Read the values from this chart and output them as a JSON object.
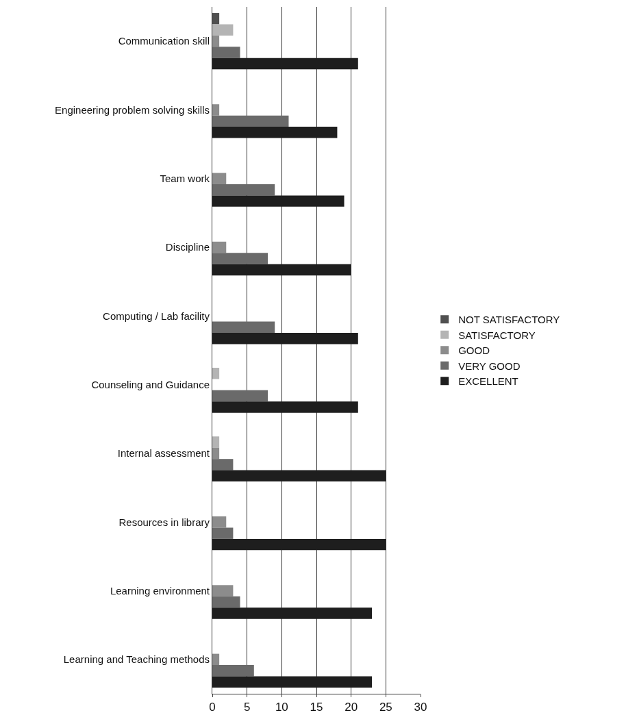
{
  "chart_data": {
    "type": "bar",
    "orientation": "horizontal",
    "categories": [
      "Communication skill",
      "Engineering problem solving skills",
      "Team work",
      "Discipline",
      "Computing / Lab facility",
      "Counseling and Guidance",
      "Internal assessment",
      "Resources in library",
      "Learning environment",
      "Learning and Teaching methods"
    ],
    "series": [
      {
        "name": "NOT SATISFACTORY",
        "color": "#505050",
        "values": [
          1,
          0,
          0,
          0,
          0,
          0,
          0,
          0,
          0,
          0
        ]
      },
      {
        "name": "SATISFACTORY",
        "color": "#b4b4b4",
        "values": [
          3,
          0,
          0,
          0,
          0,
          1,
          1,
          0,
          0,
          0
        ]
      },
      {
        "name": "GOOD",
        "color": "#8c8c8c",
        "values": [
          1,
          1,
          2,
          2,
          0,
          0,
          1,
          2,
          3,
          1
        ]
      },
      {
        "name": "VERY GOOD",
        "color": "#6a6a6a",
        "values": [
          4,
          11,
          9,
          8,
          9,
          8,
          3,
          3,
          4,
          6
        ]
      },
      {
        "name": "EXCELLENT",
        "color": "#1e1e1e",
        "values": [
          21,
          18,
          19,
          20,
          21,
          21,
          25,
          25,
          23,
          23
        ]
      }
    ],
    "xlim": [
      0,
      30
    ],
    "xticks": [
      0,
      5,
      10,
      15,
      20,
      25,
      30
    ],
    "grid": "x",
    "legend": "right"
  }
}
